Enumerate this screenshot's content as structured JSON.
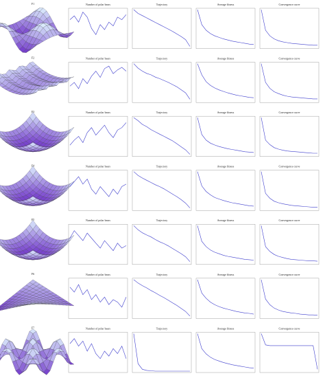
{
  "surface_labels": [
    "F1",
    "F2",
    "F3",
    "F4",
    "F5",
    "F6",
    "F7"
  ],
  "chart_data": [
    {
      "type": "line",
      "title": "Number of polar bears",
      "values": [
        22,
        25,
        20,
        28,
        24,
        15,
        10,
        18,
        14,
        20,
        17,
        24,
        22,
        26
      ],
      "ylim": [
        0,
        30
      ],
      "color": "#3b3bcc"
    },
    {
      "type": "line",
      "title": "Trajectory",
      "values": [
        1,
        0.9,
        0.84,
        0.78,
        0.72,
        0.66,
        0.6,
        0.54,
        0.48,
        0.42,
        0.35,
        0.28,
        0.2,
        0.02
      ],
      "ylim": [
        0,
        1
      ],
      "color": "#3b3bcc"
    },
    {
      "type": "line",
      "title": "Average fitness",
      "values": [
        1,
        0.6,
        0.45,
        0.36,
        0.3,
        0.26,
        0.22,
        0.19,
        0.16,
        0.14,
        0.12,
        0.1,
        0.08,
        0.07
      ],
      "ylim": [
        0,
        1
      ],
      "color": "#3b3bcc"
    },
    {
      "type": "line",
      "title": "Convergence curve",
      "values": [
        1,
        0.45,
        0.3,
        0.22,
        0.17,
        0.14,
        0.12,
        0.1,
        0.09,
        0.08,
        0.07,
        0.06,
        0.05,
        0.05
      ],
      "ylim": [
        0,
        1
      ],
      "color": "#3b3bcc"
    },
    {
      "type": "line",
      "title": "Number of polar bears",
      "values": [
        12,
        15,
        10,
        18,
        14,
        20,
        24,
        19,
        26,
        28,
        22,
        25,
        27,
        24
      ],
      "ylim": [
        0,
        30
      ],
      "color": "#3b3bcc"
    },
    {
      "type": "line",
      "title": "Trajectory",
      "values": [
        1,
        0.88,
        0.8,
        0.74,
        0.7,
        0.64,
        0.6,
        0.55,
        0.5,
        0.44,
        0.38,
        0.3,
        0.22,
        0.05
      ],
      "ylim": [
        0,
        1
      ],
      "color": "#3b3bcc"
    },
    {
      "type": "line",
      "title": "Average fitness",
      "values": [
        1,
        0.7,
        0.52,
        0.42,
        0.35,
        0.3,
        0.26,
        0.22,
        0.19,
        0.16,
        0.14,
        0.12,
        0.1,
        0.09
      ],
      "ylim": [
        0,
        1
      ],
      "color": "#3b3bcc"
    },
    {
      "type": "line",
      "title": "Convergence curve",
      "values": [
        1,
        0.5,
        0.34,
        0.25,
        0.2,
        0.16,
        0.13,
        0.11,
        0.1,
        0.09,
        0.08,
        0.07,
        0.06,
        0.06
      ],
      "ylim": [
        0,
        1
      ],
      "color": "#3b3bcc"
    },
    {
      "type": "line",
      "title": "Number of polar bears",
      "values": [
        8,
        12,
        15,
        10,
        18,
        22,
        16,
        20,
        24,
        18,
        14,
        20,
        22,
        26
      ],
      "ylim": [
        0,
        30
      ],
      "color": "#3b3bcc"
    },
    {
      "type": "line",
      "title": "Trajectory",
      "values": [
        1,
        0.92,
        0.82,
        0.76,
        0.68,
        0.62,
        0.56,
        0.5,
        0.44,
        0.38,
        0.3,
        0.22,
        0.14,
        0.02
      ],
      "ylim": [
        0,
        1
      ],
      "color": "#3b3bcc"
    },
    {
      "type": "line",
      "title": "Average fitness",
      "values": [
        1,
        0.55,
        0.4,
        0.32,
        0.27,
        0.23,
        0.2,
        0.17,
        0.15,
        0.13,
        0.11,
        0.09,
        0.08,
        0.07
      ],
      "ylim": [
        0,
        1
      ],
      "color": "#3b3bcc"
    },
    {
      "type": "line",
      "title": "Convergence curve",
      "values": [
        1,
        0.4,
        0.28,
        0.2,
        0.16,
        0.13,
        0.11,
        0.1,
        0.09,
        0.08,
        0.07,
        0.06,
        0.05,
        0.05
      ],
      "ylim": [
        0,
        1
      ],
      "color": "#3b3bcc"
    },
    {
      "type": "line",
      "title": "Number of polar bears",
      "values": [
        18,
        22,
        26,
        20,
        24,
        16,
        12,
        18,
        14,
        10,
        16,
        12,
        18,
        20
      ],
      "ylim": [
        0,
        30
      ],
      "color": "#3b3bcc"
    },
    {
      "type": "line",
      "title": "Trajectory",
      "values": [
        1,
        0.9,
        0.83,
        0.77,
        0.71,
        0.65,
        0.6,
        0.54,
        0.47,
        0.4,
        0.33,
        0.25,
        0.16,
        0.03
      ],
      "ylim": [
        0,
        1
      ],
      "color": "#3b3bcc"
    },
    {
      "type": "line",
      "title": "Average fitness",
      "values": [
        1,
        0.62,
        0.47,
        0.38,
        0.31,
        0.27,
        0.23,
        0.2,
        0.17,
        0.15,
        0.13,
        0.11,
        0.09,
        0.08
      ],
      "ylim": [
        0,
        1
      ],
      "color": "#3b3bcc"
    },
    {
      "type": "line",
      "title": "Convergence curve",
      "values": [
        1,
        0.42,
        0.29,
        0.21,
        0.17,
        0.14,
        0.12,
        0.1,
        0.09,
        0.08,
        0.07,
        0.06,
        0.05,
        0.05
      ],
      "ylim": [
        0,
        1
      ],
      "color": "#3b3bcc"
    },
    {
      "type": "line",
      "title": "Number of polar bears",
      "values": [
        20,
        26,
        22,
        18,
        24,
        20,
        16,
        12,
        18,
        14,
        10,
        16,
        12,
        14
      ],
      "ylim": [
        0,
        30
      ],
      "color": "#3b3bcc"
    },
    {
      "type": "line",
      "title": "Trajectory",
      "values": [
        1,
        0.89,
        0.81,
        0.75,
        0.7,
        0.63,
        0.57,
        0.52,
        0.46,
        0.39,
        0.32,
        0.25,
        0.17,
        0.04
      ],
      "ylim": [
        0,
        1
      ],
      "color": "#3b3bcc"
    },
    {
      "type": "line",
      "title": "Average fitness",
      "values": [
        1,
        0.58,
        0.44,
        0.35,
        0.29,
        0.25,
        0.21,
        0.18,
        0.16,
        0.14,
        0.12,
        0.1,
        0.09,
        0.08
      ],
      "ylim": [
        0,
        1
      ],
      "color": "#3b3bcc"
    },
    {
      "type": "line",
      "title": "Convergence curve",
      "values": [
        1,
        0.44,
        0.31,
        0.23,
        0.18,
        0.15,
        0.12,
        0.1,
        0.09,
        0.08,
        0.07,
        0.06,
        0.06,
        0.05
      ],
      "ylim": [
        0,
        1
      ],
      "color": "#3b3bcc"
    },
    {
      "type": "line",
      "title": "Number of polar bears",
      "values": [
        24,
        20,
        26,
        18,
        22,
        14,
        18,
        12,
        16,
        10,
        14,
        12,
        8,
        16
      ],
      "ylim": [
        0,
        30
      ],
      "color": "#3b3bcc"
    },
    {
      "type": "line",
      "title": "Trajectory",
      "values": [
        1,
        0.91,
        0.84,
        0.78,
        0.71,
        0.65,
        0.58,
        0.52,
        0.45,
        0.38,
        0.31,
        0.23,
        0.15,
        0.03
      ],
      "ylim": [
        0,
        1
      ],
      "color": "#3b3bcc"
    },
    {
      "type": "line",
      "title": "Average fitness",
      "values": [
        1,
        0.64,
        0.5,
        0.4,
        0.33,
        0.28,
        0.24,
        0.21,
        0.18,
        0.15,
        0.13,
        0.11,
        0.1,
        0.08
      ],
      "ylim": [
        0,
        1
      ],
      "color": "#3b3bcc"
    },
    {
      "type": "line",
      "title": "Convergence curve",
      "values": [
        1,
        0.48,
        0.33,
        0.24,
        0.19,
        0.15,
        0.13,
        0.11,
        0.1,
        0.08,
        0.07,
        0.06,
        0.06,
        0.05
      ],
      "ylim": [
        0,
        1
      ],
      "color": "#3b3bcc"
    },
    {
      "type": "line",
      "title": "Number of polar bears",
      "values": [
        22,
        26,
        20,
        24,
        16,
        22,
        14,
        10,
        16,
        12,
        18,
        14,
        20,
        10
      ],
      "ylim": [
        0,
        30
      ],
      "color": "#3b3bcc"
    },
    {
      "type": "line",
      "title": "Trajectory",
      "values": [
        1,
        0.2,
        0.05,
        0.02,
        0.01,
        0,
        0,
        0,
        0,
        0,
        0,
        0,
        0,
        0
      ],
      "ylim": [
        0,
        1
      ],
      "color": "#3b3bcc"
    },
    {
      "type": "line",
      "title": "Average fitness",
      "values": [
        1,
        0.6,
        0.46,
        0.37,
        0.31,
        0.27,
        0.23,
        0.2,
        0.17,
        0.15,
        0.13,
        0.11,
        0.09,
        0.08
      ],
      "ylim": [
        0,
        1
      ],
      "color": "#3b3bcc"
    },
    {
      "type": "line",
      "title": "Convergence curve",
      "values": [
        1,
        0.7,
        0.68,
        0.68,
        0.68,
        0.68,
        0.68,
        0.68,
        0.68,
        0.68,
        0.68,
        0.68,
        0.68,
        0.05
      ],
      "ylim": [
        0,
        1
      ],
      "color": "#3b3bcc"
    }
  ]
}
